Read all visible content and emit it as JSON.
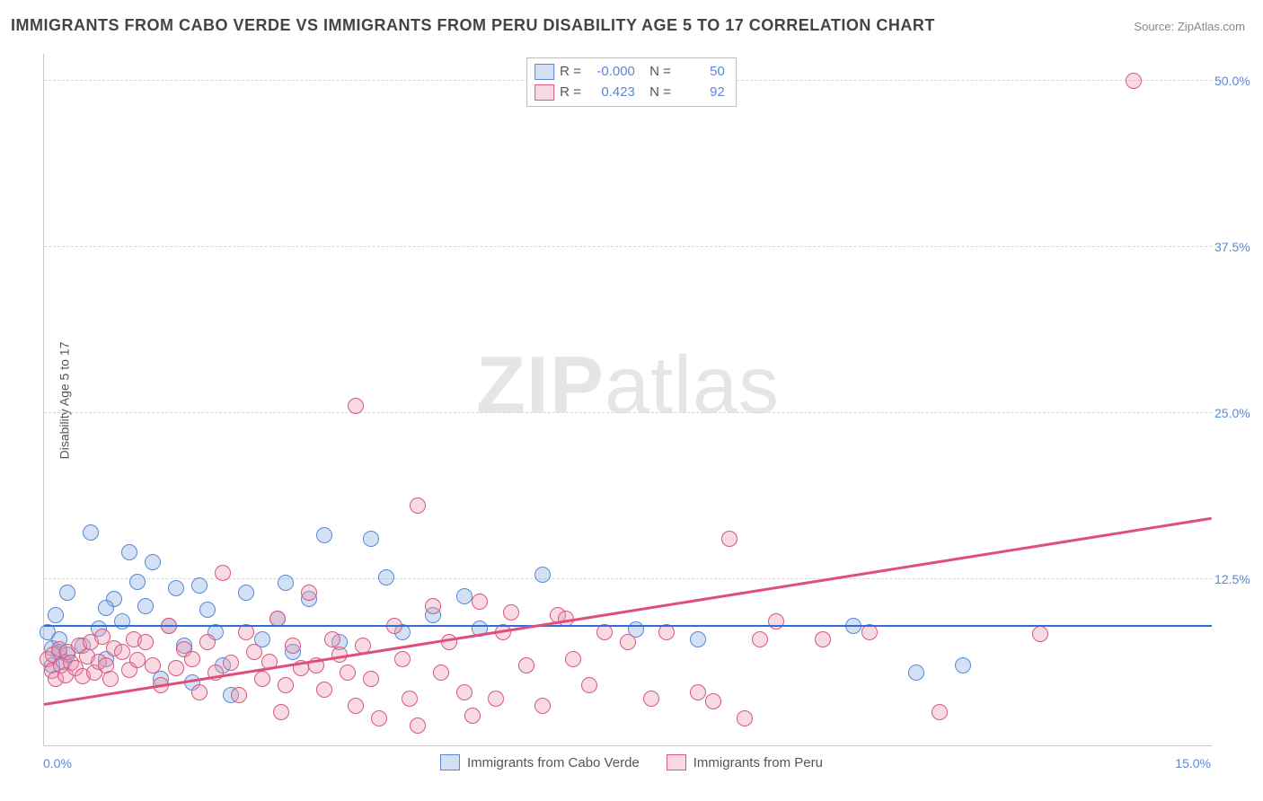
{
  "title": "IMMIGRANTS FROM CABO VERDE VS IMMIGRANTS FROM PERU DISABILITY AGE 5 TO 17 CORRELATION CHART",
  "source_label": "Source:",
  "source_name": "ZipAtlas.com",
  "ylabel": "Disability Age 5 to 17",
  "watermark_a": "ZIP",
  "watermark_b": "atlas",
  "chart": {
    "type": "scatter",
    "xlim": [
      0,
      15
    ],
    "ylim": [
      0,
      52
    ],
    "yticks": [
      12.5,
      25.0,
      37.5,
      50.0
    ],
    "ytick_labels": [
      "12.5%",
      "25.0%",
      "37.5%",
      "50.0%"
    ],
    "xtick_left": "0.0%",
    "xtick_right": "15.0%",
    "background_color": "#ffffff",
    "grid_color": "#d6d6d6",
    "marker_radius": 9,
    "marker_border_width": 1.5,
    "trend_width": 2.5
  },
  "series": [
    {
      "name": "Immigrants from Cabo Verde",
      "fill": "rgba(128,170,226,0.35)",
      "stroke": "#5b87d6",
      "trend_color": "#2f6fd4",
      "R": "-0.000",
      "N": "50",
      "trend": {
        "x1": 0,
        "y1": 8.9,
        "x2": 15,
        "y2": 8.9
      },
      "points": [
        [
          0.05,
          8.5
        ],
        [
          0.1,
          6.0
        ],
        [
          0.1,
          7.3
        ],
        [
          0.15,
          9.8
        ],
        [
          0.2,
          8.0
        ],
        [
          0.2,
          7.0
        ],
        [
          0.25,
          6.3
        ],
        [
          0.3,
          11.5
        ],
        [
          0.5,
          7.5
        ],
        [
          0.6,
          16.0
        ],
        [
          0.7,
          8.8
        ],
        [
          0.8,
          6.5
        ],
        [
          0.9,
          11.0
        ],
        [
          1.0,
          9.3
        ],
        [
          1.1,
          14.5
        ],
        [
          1.3,
          10.5
        ],
        [
          1.4,
          13.8
        ],
        [
          1.5,
          5.0
        ],
        [
          1.6,
          9.0
        ],
        [
          1.7,
          11.8
        ],
        [
          1.8,
          7.5
        ],
        [
          1.9,
          4.7
        ],
        [
          2.0,
          12.0
        ],
        [
          2.1,
          10.2
        ],
        [
          2.2,
          8.5
        ],
        [
          2.4,
          3.8
        ],
        [
          2.6,
          11.5
        ],
        [
          2.8,
          8.0
        ],
        [
          3.0,
          9.5
        ],
        [
          3.1,
          12.2
        ],
        [
          3.2,
          7.0
        ],
        [
          3.4,
          11.0
        ],
        [
          3.6,
          15.8
        ],
        [
          3.8,
          7.8
        ],
        [
          4.2,
          15.5
        ],
        [
          4.4,
          12.6
        ],
        [
          4.6,
          8.5
        ],
        [
          5.4,
          11.2
        ],
        [
          5.6,
          8.8
        ],
        [
          6.4,
          12.8
        ],
        [
          7.6,
          8.7
        ],
        [
          8.4,
          8.0
        ],
        [
          10.4,
          9.0
        ],
        [
          11.2,
          5.5
        ],
        [
          11.8,
          6.0
        ],
        [
          0.3,
          6.8
        ],
        [
          0.8,
          10.3
        ],
        [
          1.2,
          12.3
        ],
        [
          2.3,
          6.0
        ],
        [
          5.0,
          9.8
        ]
      ]
    },
    {
      "name": "Immigrants from Peru",
      "fill": "rgba(235,150,175,0.35)",
      "stroke": "#d9577f",
      "trend_color": "#e04f7b",
      "R": "0.423",
      "N": "92",
      "trend": {
        "x1": 0,
        "y1": 3.0,
        "x2": 15,
        "y2": 17.0
      },
      "points": [
        [
          0.05,
          6.5
        ],
        [
          0.1,
          5.6
        ],
        [
          0.12,
          6.8
        ],
        [
          0.15,
          5.0
        ],
        [
          0.2,
          7.2
        ],
        [
          0.22,
          6.0
        ],
        [
          0.28,
          5.3
        ],
        [
          0.3,
          7.0
        ],
        [
          0.35,
          6.2
        ],
        [
          0.4,
          5.8
        ],
        [
          0.45,
          7.5
        ],
        [
          0.5,
          5.2
        ],
        [
          0.55,
          6.7
        ],
        [
          0.6,
          7.8
        ],
        [
          0.65,
          5.5
        ],
        [
          0.7,
          6.3
        ],
        [
          0.75,
          8.2
        ],
        [
          0.8,
          6.0
        ],
        [
          0.85,
          5.0
        ],
        [
          0.9,
          7.3
        ],
        [
          1.0,
          7.0
        ],
        [
          1.1,
          5.7
        ],
        [
          1.15,
          8.0
        ],
        [
          1.2,
          6.4
        ],
        [
          1.3,
          7.8
        ],
        [
          1.4,
          6.0
        ],
        [
          1.5,
          4.5
        ],
        [
          1.6,
          9.0
        ],
        [
          1.7,
          5.8
        ],
        [
          1.8,
          7.2
        ],
        [
          1.9,
          6.5
        ],
        [
          2.0,
          4.0
        ],
        [
          2.1,
          7.8
        ],
        [
          2.2,
          5.5
        ],
        [
          2.3,
          13.0
        ],
        [
          2.4,
          6.2
        ],
        [
          2.5,
          3.8
        ],
        [
          2.6,
          8.5
        ],
        [
          2.7,
          7.0
        ],
        [
          2.8,
          5.0
        ],
        [
          2.9,
          6.3
        ],
        [
          3.0,
          9.5
        ],
        [
          3.1,
          4.5
        ],
        [
          3.2,
          7.5
        ],
        [
          3.3,
          5.8
        ],
        [
          3.4,
          11.5
        ],
        [
          3.5,
          6.0
        ],
        [
          3.6,
          4.2
        ],
        [
          3.7,
          8.0
        ],
        [
          3.8,
          6.8
        ],
        [
          3.9,
          5.5
        ],
        [
          4.0,
          25.5
        ],
        [
          4.0,
          3.0
        ],
        [
          4.1,
          7.5
        ],
        [
          4.2,
          5.0
        ],
        [
          4.3,
          2.0
        ],
        [
          4.5,
          9.0
        ],
        [
          4.6,
          6.5
        ],
        [
          4.7,
          3.5
        ],
        [
          4.8,
          18.0
        ],
        [
          4.8,
          1.5
        ],
        [
          5.0,
          10.5
        ],
        [
          5.1,
          5.5
        ],
        [
          5.2,
          7.8
        ],
        [
          5.4,
          4.0
        ],
        [
          5.6,
          10.8
        ],
        [
          5.8,
          3.5
        ],
        [
          5.9,
          8.5
        ],
        [
          6.0,
          10.0
        ],
        [
          6.2,
          6.0
        ],
        [
          6.4,
          3.0
        ],
        [
          6.6,
          9.8
        ],
        [
          6.7,
          9.5
        ],
        [
          6.8,
          6.5
        ],
        [
          7.0,
          4.5
        ],
        [
          7.2,
          8.5
        ],
        [
          7.5,
          7.8
        ],
        [
          7.8,
          3.5
        ],
        [
          8.0,
          8.5
        ],
        [
          8.4,
          4.0
        ],
        [
          8.6,
          3.3
        ],
        [
          8.8,
          15.5
        ],
        [
          9.0,
          2.0
        ],
        [
          9.2,
          8.0
        ],
        [
          9.4,
          9.3
        ],
        [
          10.0,
          8.0
        ],
        [
          10.6,
          8.5
        ],
        [
          11.5,
          2.5
        ],
        [
          12.8,
          8.4
        ],
        [
          14.0,
          50.0
        ],
        [
          3.05,
          2.5
        ],
        [
          5.5,
          2.2
        ]
      ]
    }
  ],
  "legend_top": {
    "r_label": "R =",
    "n_label": "N ="
  }
}
